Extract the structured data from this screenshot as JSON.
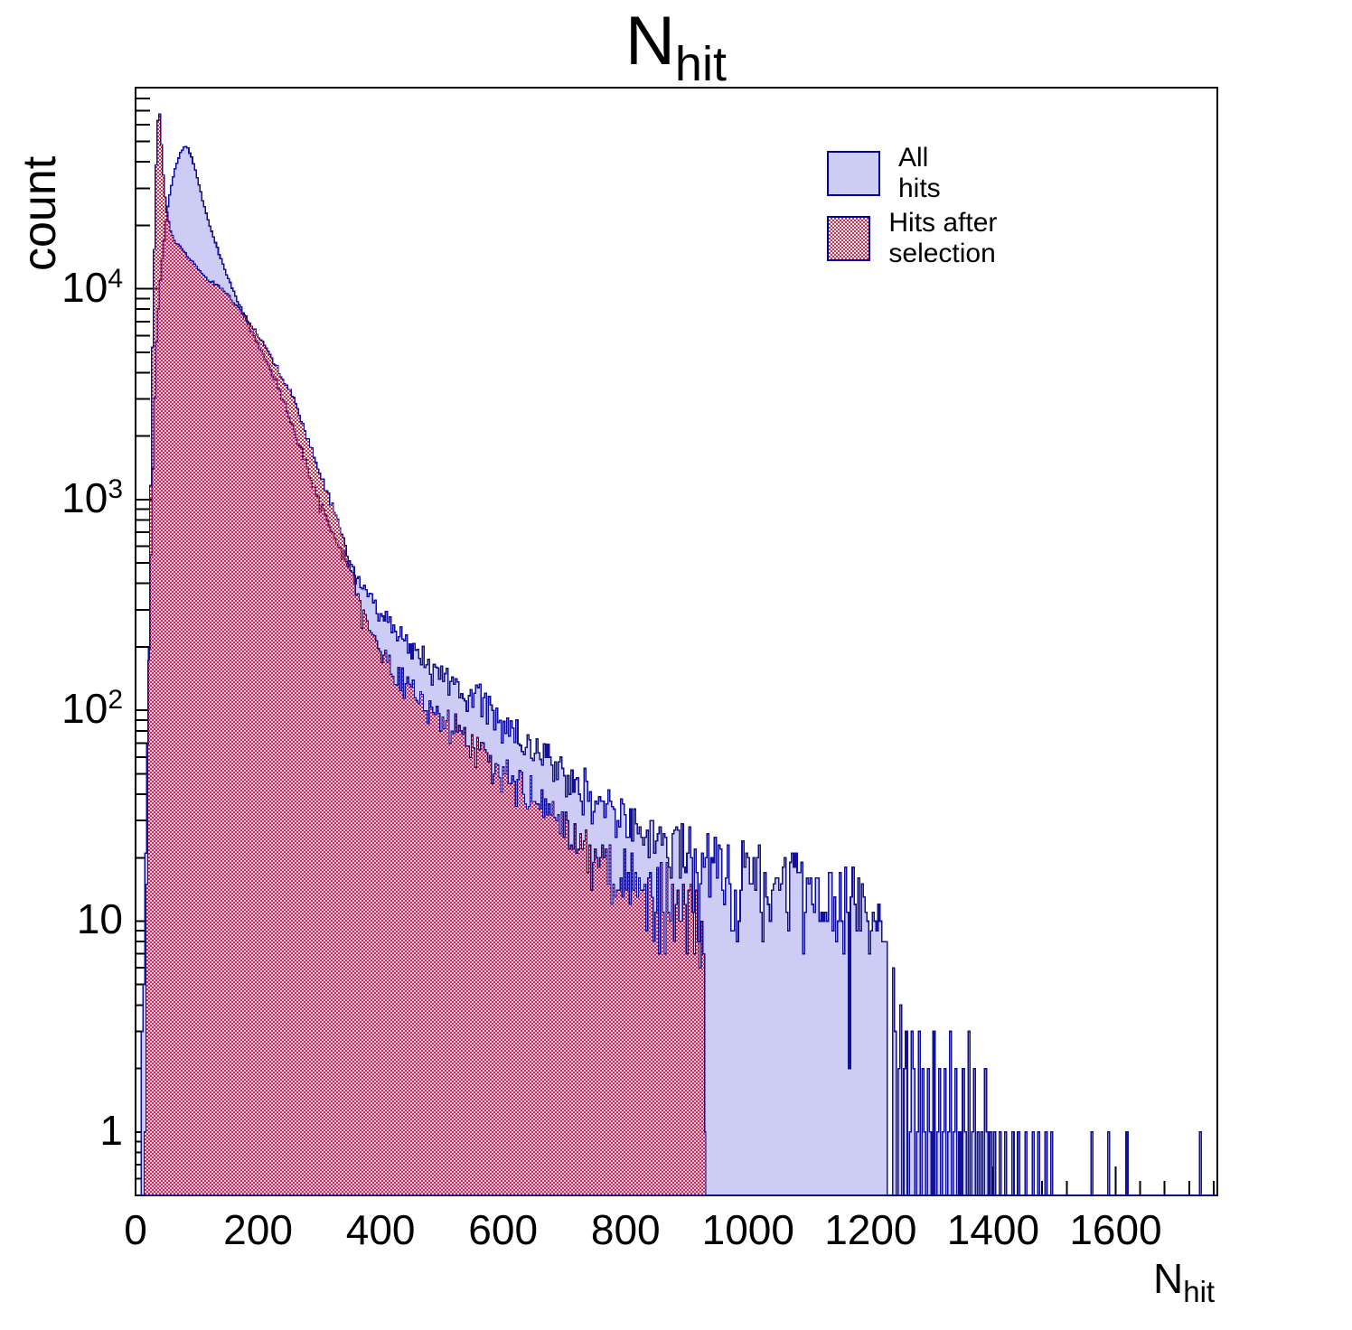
{
  "title": {
    "main": "N",
    "sub": "hit"
  },
  "y_axis": {
    "title": "count",
    "scale": "log",
    "range_min": 0.5,
    "range_max": 90000,
    "major_tick_values": [
      1,
      10,
      100,
      1000,
      10000
    ],
    "major_tick_labels": [
      {
        "base": "1",
        "exp": ""
      },
      {
        "base": "10",
        "exp": ""
      },
      {
        "base": "10",
        "exp": "2"
      },
      {
        "base": "10",
        "exp": "3"
      },
      {
        "base": "10",
        "exp": "4"
      }
    ]
  },
  "x_axis": {
    "title_main": "N",
    "title_sub": "hit",
    "range_min": 0,
    "range_max": 1766,
    "major_tick_step": 200,
    "minor_tick_step": 40,
    "major_tick_labels": [
      "0",
      "200",
      "400",
      "600",
      "800",
      "1000",
      "1200",
      "1400",
      "1600"
    ]
  },
  "legend": {
    "items": [
      {
        "label": "All hits",
        "swatch": "solid-blue"
      },
      {
        "label": "Hits after selection",
        "swatch": "red-hatch"
      }
    ]
  },
  "colors": {
    "hist_fill_blue": "#ccccf5",
    "hist_line_navy": "#10109a",
    "hatch_red": "#e12740",
    "frame": "#000000",
    "text": "#000000"
  },
  "chart_data": {
    "type": "histogram-overlay",
    "x_label": "N_hit",
    "y_label": "count",
    "y_scale": "log",
    "bin_width": 3,
    "series": [
      {
        "name": "All hits",
        "style": "solid",
        "envelope_points": [
          [
            6,
            0.5
          ],
          [
            9,
            1.2
          ],
          [
            12,
            4
          ],
          [
            15,
            12
          ],
          [
            18,
            40
          ],
          [
            21,
            110
          ],
          [
            24,
            330
          ],
          [
            27,
            900
          ],
          [
            30,
            2200
          ],
          [
            33,
            4300
          ],
          [
            36,
            7000
          ],
          [
            40,
            10500
          ],
          [
            44,
            14500
          ],
          [
            48,
            19000
          ],
          [
            52,
            24000
          ],
          [
            56,
            28500
          ],
          [
            60,
            32500
          ],
          [
            64,
            36500
          ],
          [
            68,
            40000
          ],
          [
            72,
            43000
          ],
          [
            76,
            45500
          ],
          [
            81,
            47500
          ],
          [
            86,
            46000
          ],
          [
            92,
            42000
          ],
          [
            100,
            34000
          ],
          [
            108,
            27500
          ],
          [
            118,
            21500
          ],
          [
            130,
            16500
          ],
          [
            147,
            12000
          ],
          [
            165,
            9000
          ],
          [
            185,
            6600
          ],
          [
            205,
            5100
          ],
          [
            230,
            3600
          ],
          [
            260,
            2100
          ],
          [
            295,
            1050
          ],
          [
            330,
            620
          ],
          [
            369,
            390
          ],
          [
            400,
            290
          ],
          [
            440,
            215
          ],
          [
            480,
            170
          ],
          [
            516,
            140
          ],
          [
            560,
            110
          ],
          [
            610,
            82
          ],
          [
            664,
            62
          ],
          [
            700,
            50
          ],
          [
            750,
            38
          ],
          [
            811,
            29
          ],
          [
            850,
            25
          ],
          [
            880,
            22
          ],
          [
            910,
            19
          ],
          [
            950,
            16.5
          ],
          [
            1000,
            15
          ],
          [
            1050,
            14
          ],
          [
            1100,
            13
          ],
          [
            1150,
            12.5
          ],
          [
            1200,
            11
          ],
          [
            1228,
            9
          ]
        ],
        "sparse_tail": [
          [
            1236,
            6
          ],
          [
            1240,
            3
          ],
          [
            1245,
            2
          ],
          [
            1249,
            4
          ],
          [
            1254,
            2
          ],
          [
            1258,
            3
          ],
          [
            1263,
            1
          ],
          [
            1267,
            3
          ],
          [
            1271,
            2
          ],
          [
            1276,
            1
          ],
          [
            1280,
            3
          ],
          [
            1285,
            2
          ],
          [
            1289,
            1
          ],
          [
            1294,
            2
          ],
          [
            1298,
            1
          ],
          [
            1303,
            3
          ],
          [
            1308,
            1
          ],
          [
            1312,
            2
          ],
          [
            1317,
            1
          ],
          [
            1321,
            2
          ],
          [
            1326,
            1
          ],
          [
            1331,
            3
          ],
          [
            1336,
            1
          ],
          [
            1340,
            2
          ],
          [
            1345,
            1
          ],
          [
            1350,
            2
          ],
          [
            1355,
            1
          ],
          [
            1360,
            3
          ],
          [
            1365,
            1
          ],
          [
            1370,
            2
          ],
          [
            1375,
            1
          ],
          [
            1381,
            1
          ],
          [
            1386,
            2
          ],
          [
            1391,
            1
          ],
          [
            1397,
            1
          ],
          [
            1403,
            1
          ],
          [
            1412,
            1
          ],
          [
            1421,
            1
          ],
          [
            1432,
            1
          ],
          [
            1442,
            1
          ],
          [
            1453,
            1
          ],
          [
            1464,
            1
          ],
          [
            1474,
            1
          ],
          [
            1485,
            1
          ],
          [
            1495,
            1
          ],
          [
            1560,
            1
          ],
          [
            1588,
            1
          ],
          [
            1617,
            1
          ],
          [
            1739,
            1
          ]
        ]
      },
      {
        "name": "Hits after selection",
        "style": "hatch",
        "x_end": 931,
        "envelope_points": [
          [
            14,
            0.5
          ],
          [
            16,
            2
          ],
          [
            18,
            10
          ],
          [
            20,
            60
          ],
          [
            22,
            260
          ],
          [
            24,
            900
          ],
          [
            26,
            2500
          ],
          [
            28,
            6500
          ],
          [
            30,
            13000
          ],
          [
            32,
            26000
          ],
          [
            34,
            44000
          ],
          [
            36,
            60000
          ],
          [
            38,
            73000
          ],
          [
            40,
            66000
          ],
          [
            42,
            52000
          ],
          [
            44,
            40000
          ],
          [
            46,
            33000
          ],
          [
            48,
            28000
          ],
          [
            52,
            22500
          ],
          [
            58,
            18500
          ],
          [
            65,
            16800
          ],
          [
            75,
            15500
          ],
          [
            85,
            14200
          ],
          [
            95,
            13200
          ],
          [
            105,
            12300
          ],
          [
            120,
            11000
          ],
          [
            135,
            10300
          ],
          [
            147,
            9700
          ],
          [
            165,
            8300
          ],
          [
            185,
            7000
          ],
          [
            205,
            5700
          ],
          [
            230,
            4300
          ],
          [
            260,
            2900
          ],
          [
            295,
            1500
          ],
          [
            330,
            800
          ],
          [
            350,
            500
          ],
          [
            369,
            300
          ],
          [
            400,
            190
          ],
          [
            440,
            135
          ],
          [
            480,
            100
          ],
          [
            516,
            85
          ],
          [
            560,
            64
          ],
          [
            610,
            47
          ],
          [
            664,
            34
          ],
          [
            700,
            28
          ],
          [
            750,
            21
          ],
          [
            811,
            15
          ],
          [
            850,
            12.5
          ],
          [
            880,
            10.5
          ],
          [
            905,
            9
          ],
          [
            931,
            7
          ]
        ],
        "sparse_tail": []
      }
    ]
  }
}
